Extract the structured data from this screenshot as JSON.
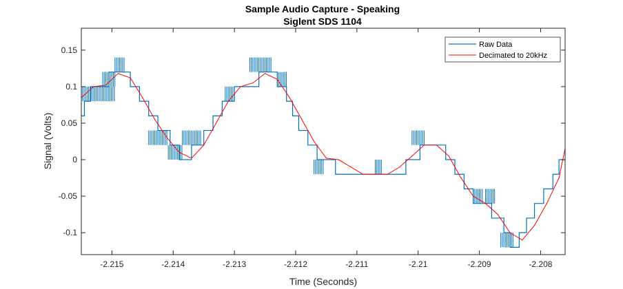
{
  "chart_data": {
    "type": "line",
    "title": "Sample Audio Capture - Speaking",
    "subtitle": "Siglent SDS 1104",
    "xlabel": "Time (Seconds)",
    "ylabel": "Signal (Volts)",
    "xlim": [
      -2.2155,
      -2.2076
    ],
    "ylim": [
      -0.13,
      0.18
    ],
    "grid": false,
    "legend_position": "top-right",
    "x_ticks": [
      -2.215,
      -2.214,
      -2.213,
      -2.212,
      -2.211,
      -2.21,
      -2.209,
      -2.208
    ],
    "x_tick_labels": [
      "-2.215",
      "-2.214",
      "-2.213",
      "-2.212",
      "-2.211",
      "-2.21",
      "-2.209",
      "-2.208"
    ],
    "y_ticks": [
      -0.1,
      -0.05,
      0,
      0.05,
      0.1,
      0.15
    ],
    "y_tick_labels": [
      "-0.1",
      "-0.05",
      "0",
      "0.05",
      "0.1",
      "0.15"
    ],
    "series": [
      {
        "name": "Raw Data",
        "color": "#0072BD",
        "style": "step",
        "x": [
          -2.2155,
          -2.21545,
          -2.21535,
          -2.21522,
          -2.21505,
          -2.2149,
          -2.2147,
          -2.21455,
          -2.2144,
          -2.21425,
          -2.21405,
          -2.2139,
          -2.2137,
          -2.2135,
          -2.21335,
          -2.2132,
          -2.213,
          -2.2128,
          -2.2126,
          -2.21243,
          -2.2123,
          -2.21215,
          -2.21205,
          -2.21195,
          -2.2118,
          -2.21165,
          -2.21135,
          -2.2106,
          -2.2102,
          -2.20997,
          -2.20975,
          -2.20955,
          -2.2094,
          -2.20925,
          -2.2091,
          -2.20895,
          -2.2088,
          -2.2087,
          -2.2086,
          -2.2085,
          -2.20842,
          -2.20835,
          -2.20823,
          -2.2081,
          -2.20795,
          -2.2078,
          -2.2077,
          -2.2076
        ],
        "y": [
          0.06,
          0.08,
          0.1,
          0.1,
          0.12,
          0.12,
          0.1,
          0.08,
          0.06,
          0.04,
          0.02,
          0.0,
          0.02,
          0.04,
          0.06,
          0.08,
          0.1,
          0.1,
          0.12,
          0.12,
          0.1,
          0.08,
          0.06,
          0.04,
          0.02,
          0.0,
          -0.02,
          -0.02,
          0.0,
          0.02,
          0.02,
          0.0,
          -0.02,
          -0.04,
          -0.06,
          -0.06,
          -0.08,
          -0.08,
          -0.1,
          -0.12,
          -0.12,
          -0.1,
          -0.08,
          -0.06,
          -0.04,
          -0.02,
          0.0,
          0.0
        ],
        "glitches": [
          {
            "x0": -2.21548,
            "x1": -2.21495,
            "lo": 0.08,
            "hi": 0.1
          },
          {
            "x0": -2.21515,
            "x1": -2.21495,
            "lo": 0.1,
            "hi": 0.12
          },
          {
            "x0": -2.21495,
            "x1": -2.21478,
            "lo": 0.12,
            "hi": 0.14
          },
          {
            "x0": -2.2144,
            "x1": -2.2141,
            "lo": 0.02,
            "hi": 0.04
          },
          {
            "x0": -2.21408,
            "x1": -2.21385,
            "lo": 0.0,
            "hi": 0.02
          },
          {
            "x0": -2.21385,
            "x1": -2.21355,
            "lo": 0.02,
            "hi": 0.04
          },
          {
            "x0": -2.21315,
            "x1": -2.21298,
            "lo": 0.08,
            "hi": 0.1
          },
          {
            "x0": -2.21275,
            "x1": -2.2124,
            "lo": 0.12,
            "hi": 0.14
          },
          {
            "x0": -2.2123,
            "x1": -2.21215,
            "lo": 0.1,
            "hi": 0.12
          },
          {
            "x0": -2.2117,
            "x1": -2.21155,
            "lo": -0.02,
            "hi": 0.0
          },
          {
            "x0": -2.2107,
            "x1": -2.21058,
            "lo": -0.02,
            "hi": 0.0
          },
          {
            "x0": -2.2101,
            "x1": -2.2099,
            "lo": 0.02,
            "hi": 0.04
          },
          {
            "x0": -2.2091,
            "x1": -2.20895,
            "lo": -0.06,
            "hi": -0.04
          },
          {
            "x0": -2.2089,
            "x1": -2.20875,
            "lo": -0.06,
            "hi": -0.04
          },
          {
            "x0": -2.20865,
            "x1": -2.20845,
            "lo": -0.12,
            "hi": -0.1
          }
        ]
      },
      {
        "name": "Decimated to 20kHz",
        "color": "#FF0000",
        "style": "line",
        "x": [
          -2.2155,
          -2.2153,
          -2.2151,
          -2.2149,
          -2.2147,
          -2.2145,
          -2.2143,
          -2.2141,
          -2.2139,
          -2.2137,
          -2.2135,
          -2.2133,
          -2.2131,
          -2.2129,
          -2.2127,
          -2.2125,
          -2.2123,
          -2.2121,
          -2.2119,
          -2.2117,
          -2.2115,
          -2.2113,
          -2.2111,
          -2.2109,
          -2.2107,
          -2.2105,
          -2.2103,
          -2.2101,
          -2.2099,
          -2.2097,
          -2.2095,
          -2.2093,
          -2.2091,
          -2.2089,
          -2.2087,
          -2.2085,
          -2.2083,
          -2.2081,
          -2.2079,
          -2.2077,
          -2.2076
        ],
        "y": [
          0.085,
          0.1,
          0.102,
          0.118,
          0.112,
          0.085,
          0.055,
          0.03,
          0.01,
          0.002,
          0.02,
          0.05,
          0.08,
          0.1,
          0.105,
          0.118,
          0.11,
          0.085,
          0.055,
          0.025,
          0.002,
          0.0,
          -0.01,
          -0.02,
          -0.02,
          -0.02,
          -0.01,
          0.005,
          0.02,
          0.02,
          0.005,
          -0.025,
          -0.05,
          -0.06,
          -0.075,
          -0.1,
          -0.11,
          -0.09,
          -0.06,
          -0.025,
          0.015
        ]
      }
    ]
  }
}
